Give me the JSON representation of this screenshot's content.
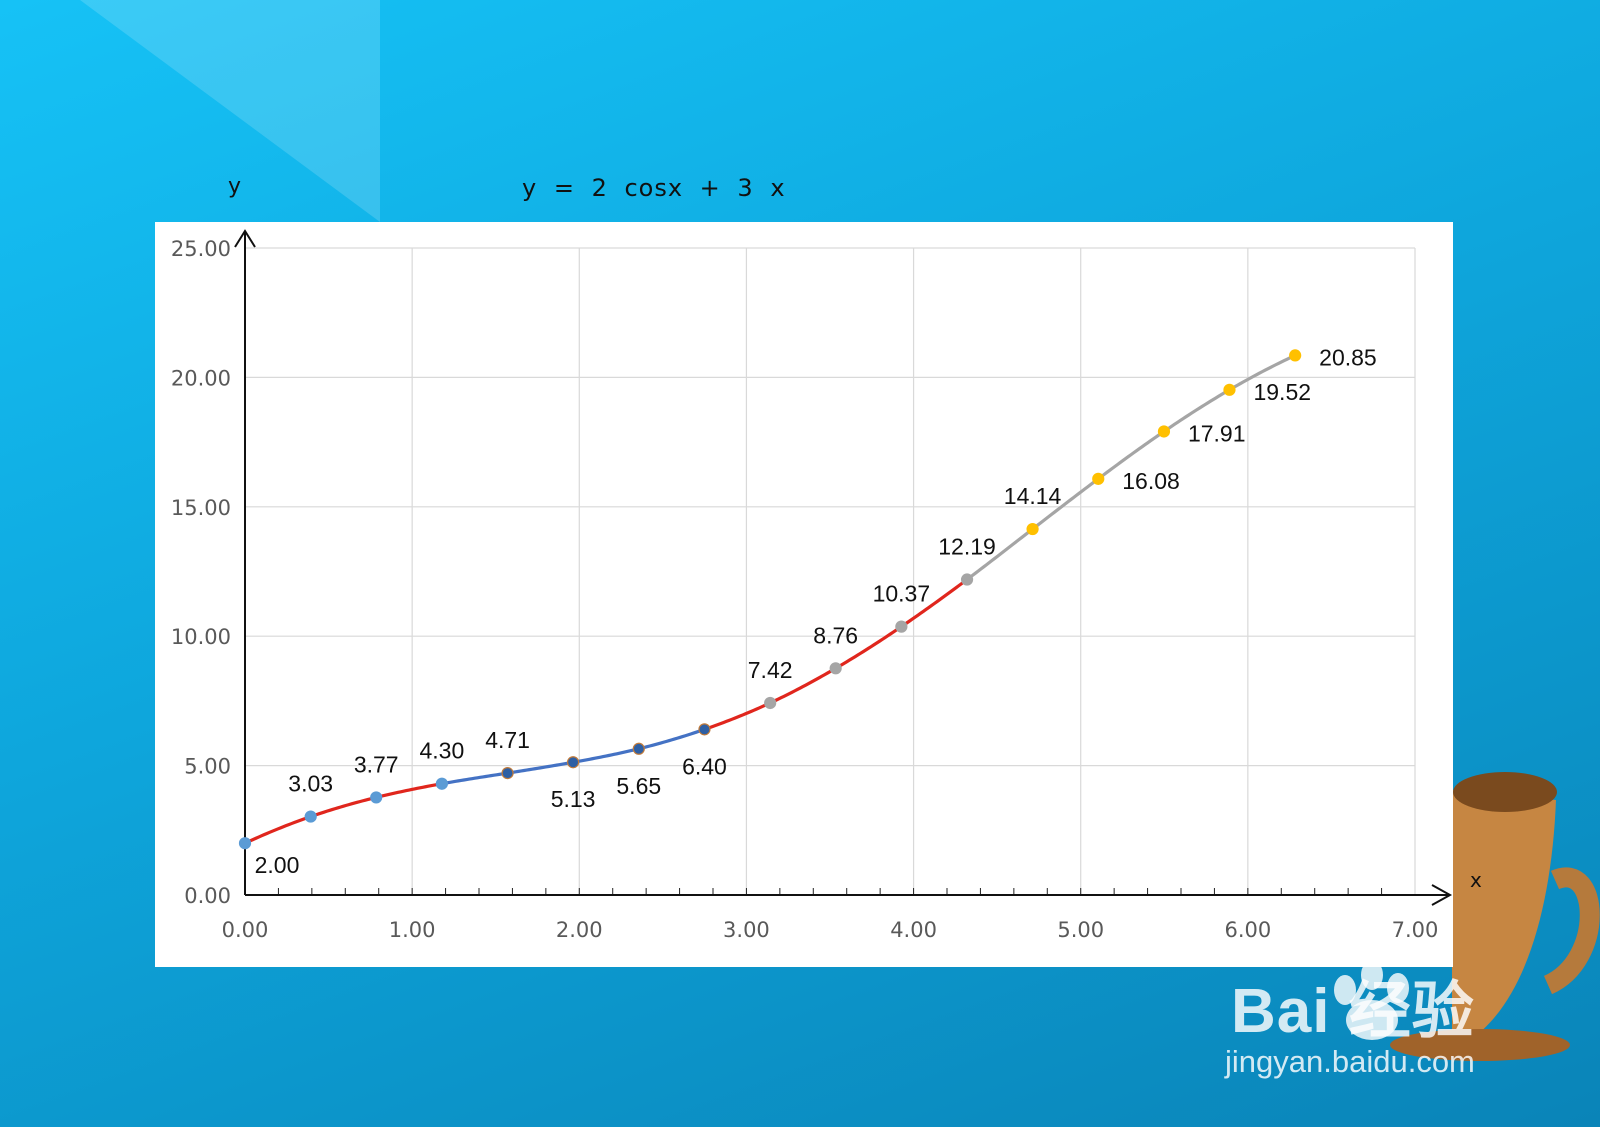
{
  "chart_data": {
    "type": "line",
    "title": "y  =  2  cosx  +  3  x",
    "xlabel": "x",
    "ylabel": "y",
    "xlim": [
      0,
      7
    ],
    "ylim": [
      0,
      25
    ],
    "x_ticks": [
      "0.00",
      "1.00",
      "2.00",
      "3.00",
      "4.00",
      "5.00",
      "6.00",
      "7.00"
    ],
    "y_ticks": [
      "0.00",
      "5.00",
      "10.00",
      "15.00",
      "20.00",
      "25.00"
    ],
    "grid": true,
    "points": [
      {
        "x": 0.0,
        "y": 2.0,
        "label": "2.00",
        "color": "#5b9bd5",
        "segment_color": "#e0261d"
      },
      {
        "x": 0.393,
        "y": 3.03,
        "label": "3.03",
        "color": "#5b9bd5",
        "segment_color": "#e0261d"
      },
      {
        "x": 0.785,
        "y": 3.77,
        "label": "3.77",
        "color": "#5b9bd5",
        "segment_color": "#e0261d"
      },
      {
        "x": 1.178,
        "y": 4.3,
        "label": "4.30",
        "color": "#5b9bd5",
        "segment_color": "#e0261d"
      },
      {
        "x": 1.571,
        "y": 4.71,
        "label": "4.71",
        "color": "#2e5fa3",
        "segment_color": "#4472c4"
      },
      {
        "x": 1.963,
        "y": 5.13,
        "label": "5.13",
        "color": "#2e5fa3",
        "segment_color": "#4472c4"
      },
      {
        "x": 2.356,
        "y": 5.65,
        "label": "5.65",
        "color": "#2e5fa3",
        "segment_color": "#4472c4"
      },
      {
        "x": 2.749,
        "y": 6.4,
        "label": "6.40",
        "color": "#2e5fa3",
        "segment_color": "#4472c4"
      },
      {
        "x": 3.142,
        "y": 7.42,
        "label": "7.42",
        "color": "#a5a5a5",
        "segment_color": "#e0261d"
      },
      {
        "x": 3.534,
        "y": 8.76,
        "label": "8.76",
        "color": "#a5a5a5",
        "segment_color": "#e0261d"
      },
      {
        "x": 3.927,
        "y": 10.37,
        "label": "10.37",
        "color": "#a5a5a5",
        "segment_color": "#e0261d"
      },
      {
        "x": 4.32,
        "y": 12.19,
        "label": "12.19",
        "color": "#a5a5a5",
        "segment_color": "#e0261d"
      },
      {
        "x": 4.712,
        "y": 14.14,
        "label": "14.14",
        "color": "#ffc000",
        "segment_color": "#a5a5a5"
      },
      {
        "x": 5.105,
        "y": 16.08,
        "label": "16.08",
        "color": "#ffc000",
        "segment_color": "#a5a5a5"
      },
      {
        "x": 5.498,
        "y": 17.91,
        "label": "17.91",
        "color": "#ffc000",
        "segment_color": "#a5a5a5"
      },
      {
        "x": 5.89,
        "y": 19.52,
        "label": "19.52",
        "color": "#ffc000",
        "segment_color": "#a5a5a5"
      },
      {
        "x": 6.283,
        "y": 20.85,
        "label": "20.85",
        "color": "#ffc000",
        "segment_color": "#a5a5a5"
      }
    ]
  },
  "watermark": {
    "brand": "Bai  经验",
    "url": "jingyan.baidu.com"
  }
}
